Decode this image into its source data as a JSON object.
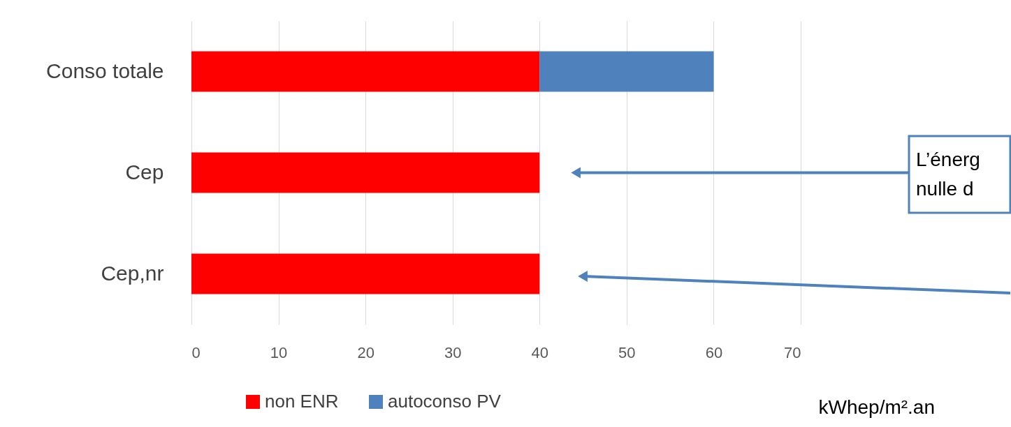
{
  "chart_data": {
    "type": "bar",
    "orientation": "horizontal",
    "stacked": true,
    "categories": [
      "Conso totale",
      "Cep",
      "Cep,nr"
    ],
    "series": [
      {
        "name": "non ENR",
        "color": "#ff0000",
        "values": [
          40,
          40,
          40
        ]
      },
      {
        "name": "autoconso PV",
        "color": "#4f81bd",
        "values": [
          20,
          0,
          0
        ]
      }
    ],
    "xlim": [
      0,
      70
    ],
    "xticks": [
      0,
      10,
      20,
      30,
      40,
      50,
      60,
      70
    ],
    "grid": "x",
    "legend": "bottom",
    "xlabel": "kWhep/m².an",
    "annotations": [
      {
        "text": "L’énerg\nnulle d",
        "x": 44,
        "y": "Cep"
      }
    ]
  }
}
